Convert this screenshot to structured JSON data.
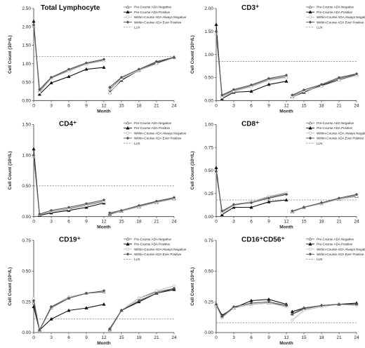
{
  "legend": {
    "labels": [
      "Pre-Course ADA Negative",
      "Pre-Course ADA Positive",
      "Within-Course ADA Always Negative",
      "Within-Course ADA Ever Positive",
      "LLN"
    ]
  },
  "series_styles": [
    {
      "color": "#777777",
      "marker": "triangle-open",
      "dash": "none"
    },
    {
      "color": "#111111",
      "marker": "triangle-filled",
      "dash": "none"
    },
    {
      "color": "#bbbbbb",
      "marker": "circle-open",
      "dash": "none"
    },
    {
      "color": "#555555",
      "marker": "diamond-filled",
      "dash": "none"
    }
  ],
  "chart_data": [
    {
      "type": "line",
      "title": "Total Lymphocyte",
      "xlabel": "Month",
      "ylabel": "Cell Count (10⁹/L)",
      "xlim": [
        0,
        24
      ],
      "ylim": [
        0,
        2.5
      ],
      "xticks": [
        0,
        3,
        6,
        9,
        12,
        15,
        18,
        21,
        24
      ],
      "yticks": [
        "0.00",
        "0.50",
        "1.00",
        "1.50",
        "2.00",
        "2.50"
      ],
      "ytick_values": [
        0,
        0.5,
        1.0,
        1.5,
        2.0,
        2.5
      ],
      "lln": 1.2,
      "segments": [
        [
          0,
          12
        ],
        [
          13,
          24
        ]
      ],
      "x": [
        0,
        1,
        3,
        6,
        9,
        12,
        13,
        15,
        18,
        21,
        24
      ],
      "series": [
        {
          "name": "Pre-Course ADA Negative",
          "values": [
            2.04,
            0.26,
            0.62,
            0.82,
            1.0,
            1.1,
            0.3,
            0.62,
            0.85,
            1.05,
            1.18
          ]
        },
        {
          "name": "Pre-Course ADA Positive",
          "values": [
            2.15,
            0.17,
            0.48,
            0.65,
            0.85,
            0.9,
            0.22,
            0.55,
            0.82,
            1.02,
            1.17
          ]
        },
        {
          "name": "Within-Course ADA Always Negative",
          "values": [
            2.02,
            0.22,
            0.6,
            0.8,
            0.99,
            1.08,
            0.2,
            0.58,
            0.82,
            1.0,
            1.16
          ]
        },
        {
          "name": "Within-Course ADA Ever Positive",
          "values": [
            2.05,
            0.3,
            0.63,
            0.85,
            1.02,
            1.12,
            0.36,
            0.63,
            0.85,
            1.06,
            1.17
          ]
        }
      ]
    },
    {
      "type": "line",
      "title": "CD3⁺",
      "xlabel": "Month",
      "ylabel": "Cell Count (10⁹/L)",
      "xlim": [
        0,
        24
      ],
      "ylim": [
        0,
        2.0
      ],
      "xticks": [
        0,
        3,
        6,
        9,
        12,
        15,
        18,
        21,
        24
      ],
      "yticks": [
        "0.00",
        "0.50",
        "1.00",
        "1.50",
        "2.00"
      ],
      "ytick_values": [
        0,
        0.5,
        1.0,
        1.5,
        2.0
      ],
      "lln": 0.85,
      "segments": [
        [
          0,
          12
        ],
        [
          13,
          24
        ]
      ],
      "x": [
        0,
        1,
        3,
        6,
        9,
        12,
        13,
        15,
        18,
        21,
        24
      ],
      "series": [
        {
          "name": "Pre-Course ADA Negative",
          "values": [
            1.45,
            0.1,
            0.22,
            0.32,
            0.46,
            0.52,
            0.1,
            0.2,
            0.33,
            0.48,
            0.57
          ]
        },
        {
          "name": "Pre-Course ADA Positive",
          "values": [
            1.65,
            0.04,
            0.18,
            0.2,
            0.35,
            0.42,
            0.08,
            0.18,
            0.33,
            0.45,
            0.56
          ]
        },
        {
          "name": "Within-Course ADA Always Negative",
          "values": [
            1.44,
            0.07,
            0.2,
            0.3,
            0.44,
            0.5,
            0.08,
            0.2,
            0.31,
            0.44,
            0.55
          ]
        },
        {
          "name": "Within-Course ADA Ever Positive",
          "values": [
            1.5,
            0.12,
            0.24,
            0.34,
            0.48,
            0.55,
            0.12,
            0.23,
            0.35,
            0.5,
            0.58
          ]
        }
      ]
    },
    {
      "type": "line",
      "title": "CD4⁺",
      "xlabel": "Month",
      "ylabel": "Cell Count (10⁹/L)",
      "xlim": [
        0,
        24
      ],
      "ylim": [
        0,
        1.5
      ],
      "xticks": [
        0,
        3,
        6,
        9,
        12,
        15,
        18,
        21,
        24
      ],
      "yticks": [
        "0.00",
        "0.50",
        "1.00",
        "1.50"
      ],
      "ytick_values": [
        0,
        0.5,
        1.0,
        1.5
      ],
      "lln": 0.5,
      "segments": [
        [
          0,
          12
        ],
        [
          13,
          24
        ]
      ],
      "x": [
        0,
        1,
        3,
        6,
        9,
        12,
        13,
        15,
        18,
        21,
        24
      ],
      "series": [
        {
          "name": "Pre-Course ADA Negative",
          "values": [
            0.98,
            0.03,
            0.08,
            0.13,
            0.19,
            0.25,
            0.05,
            0.09,
            0.17,
            0.24,
            0.3
          ]
        },
        {
          "name": "Pre-Course ADA Positive",
          "values": [
            1.1,
            0.02,
            0.06,
            0.1,
            0.15,
            0.22,
            0.04,
            0.09,
            0.16,
            0.23,
            0.29
          ]
        },
        {
          "name": "Within-Course ADA Always Negative",
          "values": [
            0.97,
            0.03,
            0.08,
            0.12,
            0.18,
            0.24,
            0.05,
            0.09,
            0.16,
            0.23,
            0.29
          ]
        },
        {
          "name": "Within-Course ADA Ever Positive",
          "values": [
            1.0,
            0.04,
            0.1,
            0.15,
            0.21,
            0.27,
            0.06,
            0.1,
            0.18,
            0.25,
            0.31
          ]
        }
      ]
    },
    {
      "type": "line",
      "title": "CD8⁺",
      "xlabel": "Month",
      "ylabel": "Cell Count (10⁹/L)",
      "xlim": [
        0,
        24
      ],
      "ylim": [
        0,
        1.0
      ],
      "xticks": [
        0,
        3,
        6,
        9,
        12,
        15,
        18,
        21,
        24
      ],
      "yticks": [
        "0.00",
        "0.25",
        "0.50",
        "0.75",
        "1.00"
      ],
      "ytick_values": [
        0,
        0.25,
        0.5,
        0.75,
        1.0
      ],
      "lln": 0.18,
      "segments": [
        [
          0,
          12
        ],
        [
          13,
          24
        ]
      ],
      "x": [
        0,
        1,
        3,
        6,
        9,
        12,
        13,
        15,
        18,
        21,
        24
      ],
      "series": [
        {
          "name": "Pre-Course ADA Negative",
          "values": [
            0.48,
            0.05,
            0.13,
            0.16,
            0.21,
            0.25,
            0.05,
            0.1,
            0.14,
            0.19,
            0.23
          ]
        },
        {
          "name": "Pre-Course ADA Positive",
          "values": [
            0.53,
            0.02,
            0.1,
            0.1,
            0.16,
            0.18,
            0.05,
            0.1,
            0.15,
            0.19,
            0.22
          ]
        },
        {
          "name": "Within-Course ADA Always Negative",
          "values": [
            0.47,
            0.04,
            0.12,
            0.16,
            0.22,
            0.26,
            0.05,
            0.1,
            0.14,
            0.19,
            0.22
          ]
        },
        {
          "name": "Within-Course ADA Ever Positive",
          "values": [
            0.49,
            0.06,
            0.13,
            0.15,
            0.2,
            0.24,
            0.06,
            0.1,
            0.15,
            0.2,
            0.24
          ]
        }
      ]
    },
    {
      "type": "line",
      "title": "CD19⁺",
      "xlabel": "Month",
      "ylabel": "Cell Count (10⁹/L)",
      "xlim": [
        0,
        24
      ],
      "ylim": [
        0,
        0.75
      ],
      "xticks": [
        0,
        3,
        6,
        9,
        12,
        15,
        18,
        21,
        24
      ],
      "yticks": [
        "0.00",
        "0.25",
        "0.50",
        "0.75"
      ],
      "ytick_values": [
        0,
        0.25,
        0.5,
        0.75
      ],
      "lln": 0.11,
      "segments": [
        [
          0,
          12
        ],
        [
          13,
          24
        ]
      ],
      "x": [
        0,
        1,
        3,
        6,
        9,
        12,
        13,
        15,
        18,
        21,
        24
      ],
      "series": [
        {
          "name": "Pre-Course ADA Negative",
          "values": [
            0.24,
            0.02,
            0.2,
            0.28,
            0.32,
            0.33,
            0.02,
            0.18,
            0.28,
            0.33,
            0.36
          ]
        },
        {
          "name": "Pre-Course ADA Positive",
          "values": [
            0.21,
            0.02,
            0.11,
            0.18,
            0.2,
            0.23,
            0.03,
            0.18,
            0.25,
            0.32,
            0.35
          ]
        },
        {
          "name": "Within-Course ADA Always Negative",
          "values": [
            0.28,
            0.02,
            0.21,
            0.29,
            0.32,
            0.34,
            0.03,
            0.18,
            0.28,
            0.34,
            0.38
          ]
        },
        {
          "name": "Within-Course ADA Ever Positive",
          "values": [
            0.26,
            0.02,
            0.21,
            0.28,
            0.32,
            0.34,
            0.03,
            0.18,
            0.26,
            0.32,
            0.36
          ]
        }
      ]
    },
    {
      "type": "line",
      "title": "CD16⁺CD56⁺",
      "xlabel": "Month",
      "ylabel": "Cell Count (10⁹/L)",
      "xlim": [
        0,
        24
      ],
      "ylim": [
        0,
        0.75
      ],
      "xticks": [
        0,
        3,
        6,
        9,
        12,
        15,
        18,
        21,
        24
      ],
      "yticks": [
        "0.00",
        "0.25",
        "0.50",
        "0.75"
      ],
      "ytick_values": [
        0,
        0.25,
        0.5,
        0.75
      ],
      "lln": 0.08,
      "segments": [
        [
          0,
          12
        ],
        [
          13,
          24
        ]
      ],
      "x": [
        0,
        1,
        3,
        6,
        9,
        12,
        13,
        15,
        18,
        21,
        24
      ],
      "series": [
        {
          "name": "Pre-Course ADA Negative",
          "values": [
            0.22,
            0.13,
            0.2,
            0.23,
            0.24,
            0.22,
            0.15,
            0.19,
            0.22,
            0.23,
            0.23
          ]
        },
        {
          "name": "Pre-Course ADA Positive",
          "values": [
            0.23,
            0.14,
            0.2,
            0.26,
            0.27,
            0.23,
            0.17,
            0.2,
            0.22,
            0.23,
            0.24
          ]
        },
        {
          "name": "Within-Course ADA Always Negative",
          "values": [
            0.22,
            0.12,
            0.2,
            0.23,
            0.24,
            0.21,
            0.1,
            0.18,
            0.21,
            0.23,
            0.22
          ]
        },
        {
          "name": "Within-Course ADA Ever Positive",
          "values": [
            0.23,
            0.13,
            0.21,
            0.24,
            0.25,
            0.22,
            0.15,
            0.2,
            0.22,
            0.23,
            0.23
          ]
        }
      ]
    }
  ]
}
